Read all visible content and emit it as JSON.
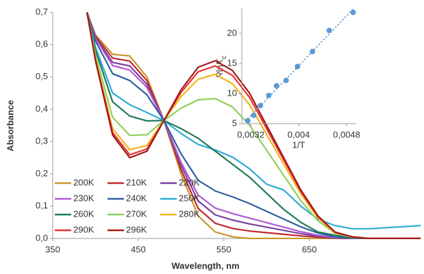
{
  "chart_data": [
    {
      "type": "line",
      "xlabel": "Wavelength, nm",
      "ylabel": "Absorbance",
      "x": [
        390,
        400,
        420,
        440,
        460,
        480,
        500,
        520,
        540,
        560,
        580,
        600,
        620,
        640,
        660,
        680,
        700,
        720,
        780
      ],
      "xlim": [
        350,
        780
      ],
      "xticks": [
        350,
        450,
        550,
        650
      ],
      "ylim": [
        0,
        0.7
      ],
      "yticks": [
        {
          "value": 0,
          "label": "0,0"
        },
        {
          "value": 0.1,
          "label": "0,1"
        },
        {
          "value": 0.2,
          "label": "0,2"
        },
        {
          "value": 0.3,
          "label": "0,3"
        },
        {
          "value": 0.4,
          "label": "0,4"
        },
        {
          "value": 0.5,
          "label": "0,5"
        },
        {
          "value": 0.6,
          "label": "0,6"
        },
        {
          "value": 0.7,
          "label": "0,7"
        }
      ],
      "legend": "bottom-left",
      "series": [
        {
          "name": "200K",
          "color": "#c9962a",
          "values": [
            0.7,
            0.63,
            0.57,
            0.565,
            0.5,
            0.365,
            0.2,
            0.07,
            0.02,
            0.005,
            0,
            0,
            0,
            0,
            0,
            0,
            0,
            0,
            0
          ]
        },
        {
          "name": "210K",
          "color": "#c0282d",
          "values": [
            0.7,
            0.626,
            0.558,
            0.549,
            0.489,
            0.365,
            0.213,
            0.093,
            0.047,
            0.031,
            0.023,
            0.018,
            0.013,
            0.008,
            0.004,
            0.001,
            0,
            0,
            0
          ]
        },
        {
          "name": "220K",
          "color": "#7a3fa0",
          "values": [
            0.7,
            0.622,
            0.545,
            0.534,
            0.477,
            0.365,
            0.226,
            0.116,
            0.073,
            0.057,
            0.045,
            0.035,
            0.025,
            0.015,
            0.007,
            0.002,
            0.001,
            0,
            0
          ]
        },
        {
          "name": "230K",
          "color": "#b05ad0",
          "values": [
            0.7,
            0.619,
            0.535,
            0.521,
            0.468,
            0.365,
            0.236,
            0.134,
            0.094,
            0.077,
            0.063,
            0.049,
            0.035,
            0.021,
            0.01,
            0.003,
            0.001,
            0,
            0
          ]
        },
        {
          "name": "240K",
          "color": "#2e5fa0",
          "values": [
            0.7,
            0.611,
            0.51,
            0.489,
            0.445,
            0.365,
            0.262,
            0.18,
            0.147,
            0.129,
            0.108,
            0.084,
            0.06,
            0.036,
            0.017,
            0.005,
            0.001,
            0,
            0
          ]
        },
        {
          "name": "250K",
          "color": "#2eaad6",
          "values": [
            0.7,
            0.592,
            0.45,
            0.414,
            0.39,
            0.365,
            0.325,
            0.291,
            0.274,
            0.252,
            0.216,
            0.168,
            0.15,
            0.1,
            0.06,
            0.04,
            0.03,
            0.03,
            0.04
          ]
        },
        {
          "name": "260K",
          "color": "#1f7a5a",
          "values": [
            0.7,
            0.583,
            0.423,
            0.379,
            0.364,
            0.365,
            0.34,
            0.31,
            0.27,
            0.23,
            0.19,
            0.14,
            0.09,
            0.05,
            0.02,
            0.01,
            0.003,
            0,
            0
          ]
        },
        {
          "name": "270K",
          "color": "#8fcf5a",
          "values": [
            0.7,
            0.568,
            0.375,
            0.319,
            0.321,
            0.365,
            0.403,
            0.429,
            0.433,
            0.407,
            0.351,
            0.273,
            0.195,
            0.117,
            0.055,
            0.016,
            0.004,
            0,
            0
          ]
        },
        {
          "name": "280K",
          "color": "#f2b51b",
          "values": [
            0.7,
            0.556,
            0.34,
            0.275,
            0.288,
            0.365,
            0.439,
            0.493,
            0.508,
            0.479,
            0.414,
            0.322,
            0.23,
            0.138,
            0.064,
            0.018,
            0.005,
            0,
            0
          ]
        },
        {
          "name": "290K",
          "color": "#e8312c",
          "values": [
            0.7,
            0.552,
            0.328,
            0.259,
            0.277,
            0.365,
            0.452,
            0.516,
            0.534,
            0.505,
            0.437,
            0.34,
            0.243,
            0.146,
            0.068,
            0.019,
            0.005,
            0,
            0
          ]
        },
        {
          "name": "296K",
          "color": "#a31919",
          "values": [
            0.7,
            0.55,
            0.32,
            0.25,
            0.27,
            0.365,
            0.46,
            0.53,
            0.55,
            0.52,
            0.45,
            0.35,
            0.25,
            0.15,
            0.07,
            0.02,
            0.005,
            0,
            0
          ]
        }
      ]
    },
    {
      "type": "scatter",
      "xlabel": "1/T",
      "ylabel": [
        "R",
        "ln",
        "K",
        "c"
      ],
      "x": [
        0.00315,
        0.00325,
        0.00336,
        0.0035,
        0.00363,
        0.00379,
        0.00398,
        0.00423,
        0.00451,
        0.00491
      ],
      "values": [
        5.5,
        6.4,
        8,
        9.7,
        11.3,
        12.2,
        14.5,
        17,
        20.5,
        23.5
      ],
      "color": "#5b9bd5",
      "trendline": true,
      "xlim": [
        0.00305,
        0.00496
      ],
      "xticks": [
        {
          "value": 0.0032,
          "label": "0,0032"
        },
        {
          "value": 0.004,
          "label": "0,004"
        },
        {
          "value": 0.0048,
          "label": "0,0048"
        }
      ],
      "ylim": [
        5,
        24.2
      ],
      "yticks": [
        5,
        10,
        15,
        20
      ]
    }
  ]
}
